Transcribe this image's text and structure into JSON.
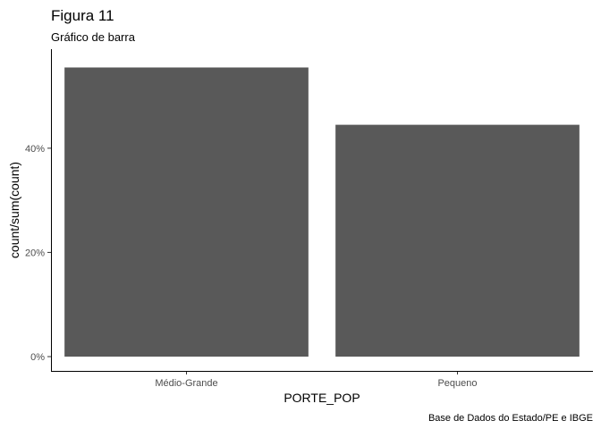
{
  "chart_data": {
    "type": "bar",
    "title": "Figura 11",
    "subtitle": "Gráfico de barra",
    "xlabel": "PORTE_POP",
    "ylabel": "count/sum(count)",
    "caption": "Base de Dados do Estado/PE e IBGE",
    "categories": [
      "Médio-Grande",
      "Pequeno"
    ],
    "values": [
      0.555,
      0.445
    ],
    "ylim": [
      0,
      0.585
    ],
    "yticks": [
      0,
      0.2,
      0.4
    ],
    "ytick_labels": [
      "0%",
      "20%",
      "40%"
    ],
    "grid": false,
    "bar_color": "#595959",
    "axis_color": "#000000"
  }
}
